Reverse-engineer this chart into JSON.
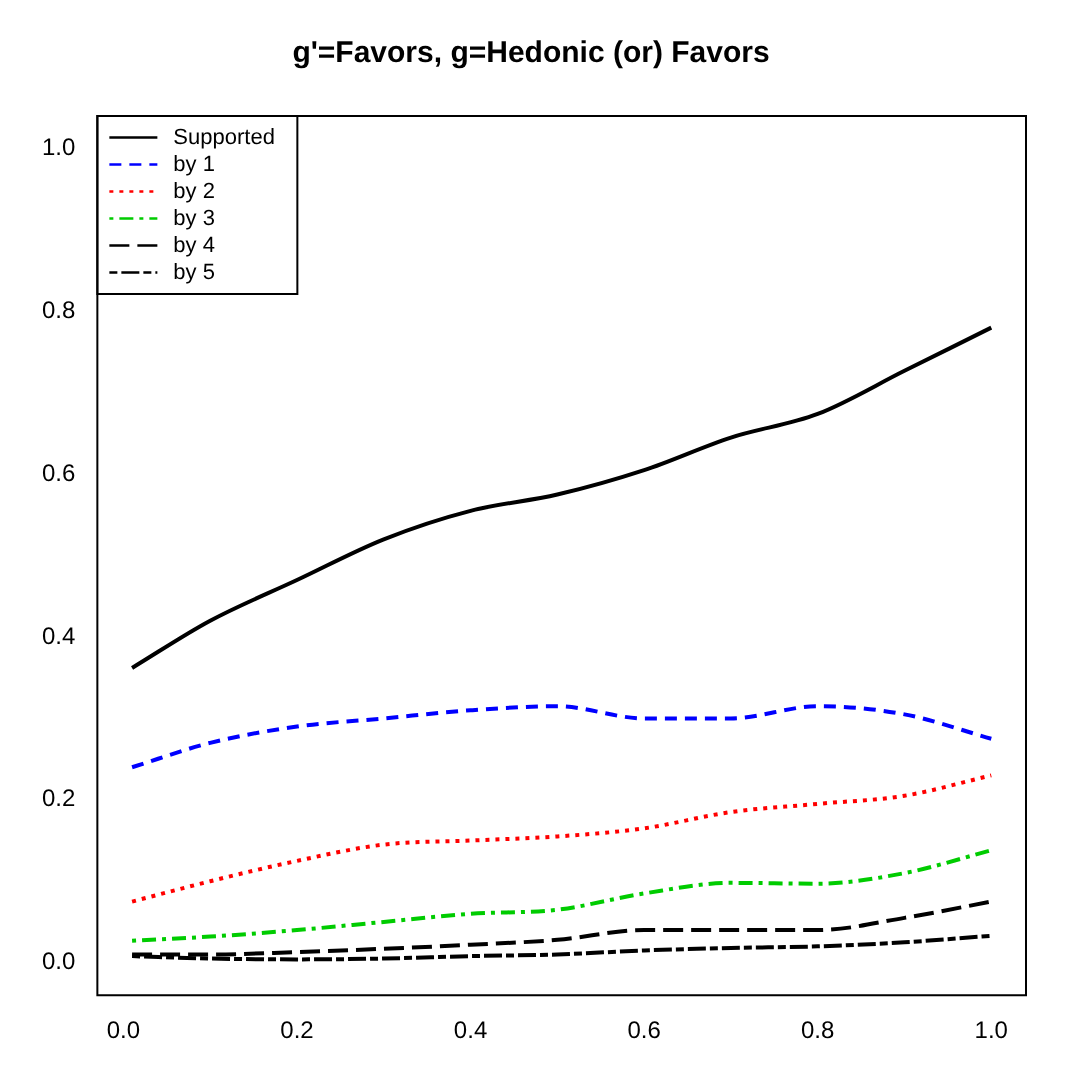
{
  "chart_data": {
    "type": "line",
    "title": "g'=Favors, g=Hedonic (or) Favors",
    "x": [
      0.01,
      0.1,
      0.2,
      0.3,
      0.4,
      0.5,
      0.6,
      0.7,
      0.8,
      0.9,
      1.0
    ],
    "series": [
      {
        "name": "Supported",
        "color": "#000000",
        "line_style": "solid",
        "values": [
          0.362,
          0.42,
          0.47,
          0.52,
          0.555,
          0.575,
          0.605,
          0.645,
          0.674,
          0.727,
          0.78
        ]
      },
      {
        "name": "by 1",
        "color": "#0000ff",
        "line_style": "dashed",
        "values": [
          0.24,
          0.27,
          0.29,
          0.3,
          0.31,
          0.315,
          0.3,
          0.3,
          0.315,
          0.305,
          0.275
        ]
      },
      {
        "name": "by 2",
        "color": "#ff0000",
        "line_style": "dotted",
        "values": [
          0.075,
          0.1,
          0.125,
          0.145,
          0.15,
          0.155,
          0.165,
          0.185,
          0.195,
          0.205,
          0.23
        ]
      },
      {
        "name": "by 3",
        "color": "#00cc00",
        "line_style": "dashdot",
        "values": [
          0.027,
          0.032,
          0.04,
          0.05,
          0.06,
          0.065,
          0.085,
          0.098,
          0.097,
          0.11,
          0.138
        ]
      },
      {
        "name": "by 4",
        "color": "#000000",
        "line_style": "longdash",
        "values": [
          0.01,
          0.01,
          0.013,
          0.017,
          0.022,
          0.028,
          0.04,
          0.04,
          0.04,
          0.055,
          0.075
        ]
      },
      {
        "name": "by 5",
        "color": "#000000",
        "line_style": "twodash",
        "values": [
          0.008,
          0.005,
          0.004,
          0.005,
          0.008,
          0.01,
          0.015,
          0.018,
          0.02,
          0.025,
          0.033
        ]
      }
    ],
    "xlim": [
      -0.03,
      1.04
    ],
    "ylim": [
      -0.04,
      1.04
    ],
    "xticks": [
      {
        "value": 0,
        "label": "0.0"
      },
      0.2,
      0.4,
      0.6,
      0.8,
      {
        "value": 1,
        "label": "1.0"
      }
    ],
    "yticks": [
      {
        "value": 0,
        "label": "0.0"
      },
      0.2,
      0.4,
      0.6,
      0.8,
      {
        "value": 1,
        "label": "1.0"
      }
    ],
    "grid": false,
    "legend": "top left",
    "marker": "none"
  }
}
